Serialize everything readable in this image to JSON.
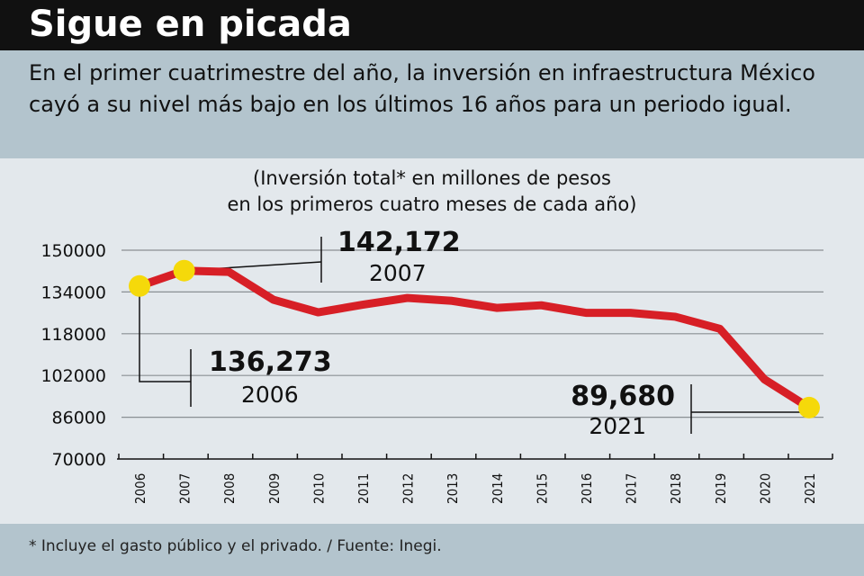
{
  "header": {
    "title": "Sigue en picada"
  },
  "subtitle": "En el primer cuatrimestre del año, la inversión en infraestructura México cayó a su nivel más bajo en los últimos 16 años para un periodo igual.",
  "footnote": "* Incluye el gasto público y el privado. / Fuente: Inegi.",
  "colors": {
    "line": "#d71f26",
    "marker": "#f5d90a",
    "grid": "#8a8f93"
  },
  "chart_data": {
    "type": "line",
    "title": "(Inversión total* en millones de pesos en los primeros cuatro meses de cada año)",
    "title_lines": [
      "(Inversión total* en millones de pesos",
      "en los primeros cuatro meses de cada año)"
    ],
    "xlabel": "",
    "ylabel": "",
    "categories": [
      "2006",
      "2007",
      "2008",
      "2009",
      "2010",
      "2011",
      "2012",
      "2013",
      "2014",
      "2015",
      "2016",
      "2017",
      "2018",
      "2019",
      "2020",
      "2021"
    ],
    "values": [
      136273,
      142172,
      141700,
      131000,
      126200,
      129100,
      131700,
      130600,
      127900,
      128900,
      126000,
      126000,
      124500,
      119900,
      100500,
      89680
    ],
    "ylim": [
      70000,
      150000
    ],
    "yticks": [
      "70000",
      "86000",
      "102000",
      "118000",
      "134000",
      "150000"
    ],
    "grid": true,
    "annotations": [
      {
        "index": 0,
        "value": "136,273",
        "year": "2006"
      },
      {
        "index": 1,
        "value": "142,172",
        "year": "2007"
      },
      {
        "index": 15,
        "value": "89,680",
        "year": "2021"
      }
    ]
  }
}
